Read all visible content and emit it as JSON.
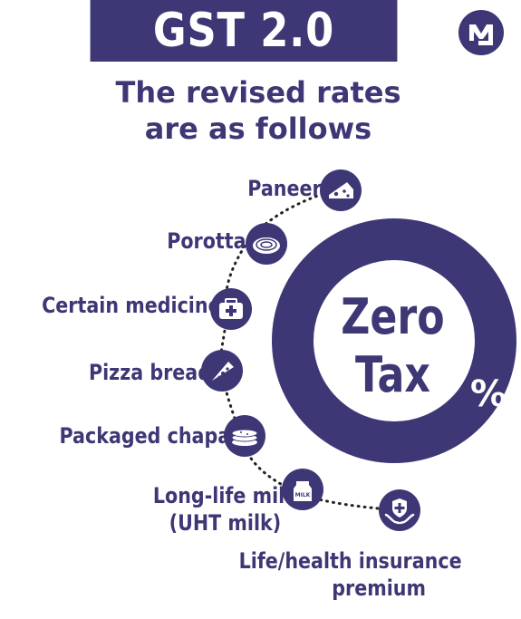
{
  "header": {
    "title": "GST 2.0"
  },
  "subtitle": {
    "line1": "The revised rates",
    "line2": "are as follows"
  },
  "ring": {
    "line1": "Zero",
    "line2": "Tax",
    "percent": "%"
  },
  "items": [
    {
      "label": "Paneer",
      "icon": "cheese-icon"
    },
    {
      "label": "Porotta",
      "icon": "porotta-icon"
    },
    {
      "label": "Certain medicines",
      "icon": "first-aid-kit-icon"
    },
    {
      "label": "Pizza bread",
      "icon": "pizza-slice-icon"
    },
    {
      "label": "Packaged chapati",
      "icon": "chapati-stack-icon"
    },
    {
      "label_line1": "Long-life milk",
      "label_line2": "(UHT milk)",
      "icon": "milk-carton-icon",
      "carton_text": "MILK"
    },
    {
      "label_line1": "Life/health insurance",
      "label_line2": "premium",
      "icon": "insurance-hands-icon"
    }
  ],
  "colors": {
    "primary": "#3d3775",
    "background": "#ffffff"
  }
}
